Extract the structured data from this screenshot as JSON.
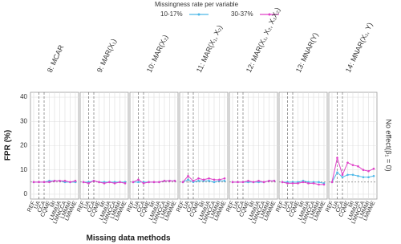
{
  "chart_data": {
    "type": "line",
    "legend_title": "Missingness rate per variable",
    "x_label": "Missing data methods",
    "y_label": "FPR (%)",
    "strip_label": "No effect(β₁ = 0)",
    "categories": [
      "REF",
      "UA",
      "CCA",
      "CQME",
      "MI",
      "LMMUA",
      "LMMCCA",
      "LMMMI",
      "LMMME"
    ],
    "ylim": [
      -2,
      42
    ],
    "yticks": [
      0,
      10,
      20,
      30,
      40
    ],
    "reference_line": 5,
    "series": [
      {
        "name": "10-17%",
        "color": "#4db8e8"
      },
      {
        "name": "30-37%",
        "color": "#e040c8"
      }
    ],
    "facets": [
      {
        "title": "8: MCAR",
        "values": [
          [
            5,
            5,
            5,
            5.5,
            5.5,
            5.5,
            5,
            5,
            5
          ],
          [
            5,
            5,
            5,
            5,
            5.5,
            5.5,
            5.5,
            5,
            5.5
          ]
        ]
      },
      {
        "title": "9: MAR(X₁)",
        "values": [
          [
            5,
            5,
            5.5,
            5,
            5,
            5,
            5,
            5,
            5
          ],
          [
            5,
            4.5,
            5.5,
            5,
            4.5,
            5,
            4.5,
            5,
            4.5
          ]
        ]
      },
      {
        "title": "10: MAR(X₂)",
        "values": [
          [
            5,
            5,
            5,
            5,
            5,
            5,
            5.5,
            5.5,
            5.5
          ],
          [
            5,
            6,
            4.5,
            5,
            5,
            5,
            5.5,
            5.5,
            5.5
          ]
        ]
      },
      {
        "title": "11: MAR(X₁, X₂)",
        "values": [
          [
            5,
            6,
            5,
            5.5,
            5.5,
            5.5,
            5,
            5.5,
            5.5
          ],
          [
            5,
            7.5,
            5.5,
            6.5,
            6,
            6.5,
            6,
            6,
            6.5
          ]
        ]
      },
      {
        "title": "12: MAR(X₁, X₂, X₁X₂)",
        "values": [
          [
            5,
            5,
            5,
            5,
            5,
            5,
            5,
            5.5,
            5.5
          ],
          [
            5,
            5,
            5,
            5.5,
            5,
            5.5,
            5,
            5.5,
            5.5
          ]
        ]
      },
      {
        "title": "13: MNAR(Y)",
        "values": [
          [
            5,
            5,
            5,
            5,
            5.5,
            5,
            5,
            5,
            4.5
          ],
          [
            5,
            4.5,
            4.5,
            4.5,
            5,
            4.5,
            4.5,
            4,
            4
          ]
        ]
      },
      {
        "title": "14: MNAR(X₁, Y)",
        "values": [
          [
            5,
            9,
            7,
            8,
            8,
            7.5,
            7,
            7,
            7.5
          ],
          [
            5,
            15,
            8,
            13,
            12,
            11.5,
            10,
            9.5,
            10.5
          ]
        ]
      }
    ]
  }
}
